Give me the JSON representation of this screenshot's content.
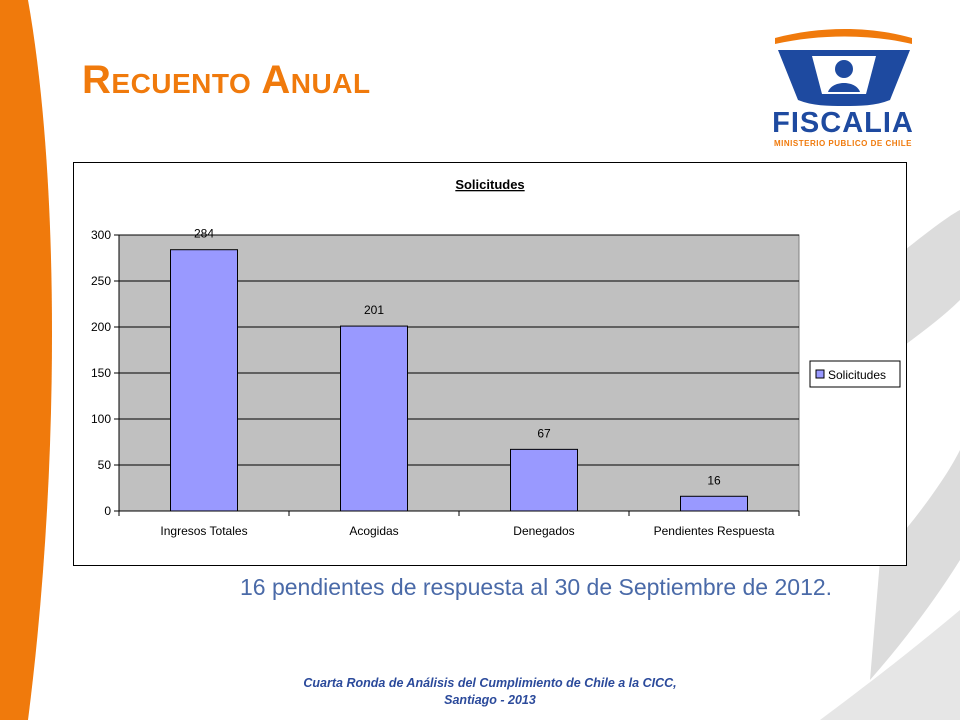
{
  "slide": {
    "title": "Recuento Anual",
    "note": "16 pendientes de respuesta al 30 de Septiembre de 2012.",
    "footer_line1": "Cuarta Ronda de Análisis del Cumplimiento de Chile a la CICC,",
    "footer_line2": "Santiago - 2013"
  },
  "logo": {
    "name": "FISCALIA",
    "tagline": "MINISTERIO PUBLICO DE CHILE"
  },
  "colors": {
    "accent_orange": "#f07a0c",
    "logo_blue": "#1e4aa0",
    "bar_fill": "#9999ff",
    "plot_bg": "#c0c0c0",
    "note_text": "#4a6aa8"
  },
  "chart_data": {
    "type": "bar",
    "title": "Solicitudes",
    "categories": [
      "Ingresos Totales",
      "Acogidas",
      "Denegados",
      "Pendientes Respuesta"
    ],
    "series": [
      {
        "name": "Solicitudes",
        "values": [
          284,
          201,
          67,
          16
        ]
      }
    ],
    "data_labels": [
      "284",
      "201",
      "67",
      "16"
    ],
    "ylim": [
      0,
      300
    ],
    "yticks": [
      0,
      50,
      100,
      150,
      200,
      250,
      300
    ],
    "grid": true,
    "legend": "right"
  }
}
